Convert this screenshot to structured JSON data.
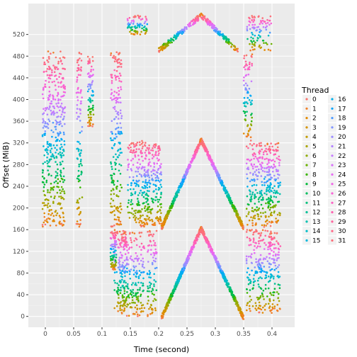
{
  "chart_data": {
    "type": "scatter",
    "xlabel": "Time (second)",
    "ylabel": "Offset (MiB)",
    "xlim": [
      -0.03,
      0.44
    ],
    "ylim": [
      -20,
      577
    ],
    "x_ticks": [
      0,
      0.05,
      0.1,
      0.15,
      0.2,
      0.25,
      0.3,
      0.35,
      0.4
    ],
    "x_tick_labels": [
      "0",
      "0.05",
      "0.1",
      "0.15",
      "0.2",
      "0.25",
      "0.3",
      "0.35",
      "0.4"
    ],
    "y_ticks": [
      0,
      40,
      80,
      120,
      160,
      200,
      240,
      280,
      320,
      360,
      400,
      440,
      480,
      520
    ],
    "y_tick_labels": [
      "0",
      "40",
      "80",
      "120",
      "160",
      "200",
      "240",
      "280",
      "320",
      "360",
      "400",
      "440",
      "480",
      "520"
    ],
    "grid": true,
    "legend": {
      "title": "Thread",
      "placement": "right",
      "labels": [
        "0",
        "1",
        "2",
        "3",
        "4",
        "5",
        "6",
        "7",
        "8",
        "9",
        "10",
        "11",
        "12",
        "13",
        "14",
        "15",
        "16",
        "17",
        "18",
        "19",
        "20",
        "21",
        "22",
        "23",
        "24",
        "25",
        "26",
        "27",
        "28",
        "29",
        "30",
        "31"
      ]
    },
    "series": [
      {
        "name": "0",
        "color": "#F8766D"
      },
      {
        "name": "1",
        "color": "#F07F28"
      },
      {
        "name": "2",
        "color": "#E38900"
      },
      {
        "name": "3",
        "color": "#D49200"
      },
      {
        "name": "4",
        "color": "#C09B00"
      },
      {
        "name": "5",
        "color": "#A9A400"
      },
      {
        "name": "6",
        "color": "#8EAB00"
      },
      {
        "name": "7",
        "color": "#6BB100"
      },
      {
        "name": "8",
        "color": "#39B600"
      },
      {
        "name": "9",
        "color": "#00BA38"
      },
      {
        "name": "10",
        "color": "#00BD5C"
      },
      {
        "name": "11",
        "color": "#00C07B"
      },
      {
        "name": "12",
        "color": "#00C097"
      },
      {
        "name": "13",
        "color": "#00C0B0"
      },
      {
        "name": "14",
        "color": "#00BCC7"
      },
      {
        "name": "15",
        "color": "#00B8DB"
      },
      {
        "name": "16",
        "color": "#00B0EC"
      },
      {
        "name": "17",
        "color": "#00A5FB"
      },
      {
        "name": "18",
        "color": "#4D9BFF"
      },
      {
        "name": "19",
        "color": "#8094FF"
      },
      {
        "name": "20",
        "color": "#9C8CFF"
      },
      {
        "name": "21",
        "color": "#B383FF"
      },
      {
        "name": "22",
        "color": "#C77CFF"
      },
      {
        "name": "23",
        "color": "#D872F9"
      },
      {
        "name": "24",
        "color": "#E76BF3"
      },
      {
        "name": "25",
        "color": "#F066E6"
      },
      {
        "name": "26",
        "color": "#F863D6"
      },
      {
        "name": "27",
        "color": "#FD61C4"
      },
      {
        "name": "28",
        "color": "#FF62B1"
      },
      {
        "name": "29",
        "color": "#FF649D"
      },
      {
        "name": "30",
        "color": "#FF6888"
      },
      {
        "name": "31",
        "color": "#FC6F7A"
      }
    ],
    "clusters": [
      {
        "t0": -0.005,
        "t1": 0.035,
        "y0": 165,
        "y1": 490,
        "mode": "band"
      },
      {
        "t0": 0.055,
        "t1": 0.065,
        "y0": 165,
        "y1": 490,
        "mode": "band"
      },
      {
        "t0": 0.115,
        "t1": 0.135,
        "y0": 165,
        "y1": 490,
        "mode": "band"
      },
      {
        "t0": 0.12,
        "t1": 0.145,
        "y0": 5,
        "y1": 160,
        "mode": "band"
      },
      {
        "t0": 0.145,
        "t1": 0.185,
        "y0": 165,
        "y1": 325,
        "mode": "band"
      },
      {
        "t0": 0.13,
        "t1": 0.175,
        "y0": 0,
        "y1": 155,
        "mode": "band"
      },
      {
        "t0": 0.175,
        "t1": 0.195,
        "y0": 165,
        "y1": 325,
        "mode": "band"
      },
      {
        "t0": 0.18,
        "t1": 0.197,
        "y0": 0,
        "y1": 160,
        "mode": "band"
      },
      {
        "t0": 0.195,
        "t1": 0.205,
        "y0": 170,
        "y1": 325,
        "mode": "band"
      },
      {
        "t0": 0.205,
        "t1": 0.275,
        "y0": 163,
        "y1": 325,
        "mode": "rampUp"
      },
      {
        "t0": 0.275,
        "t1": 0.35,
        "y0": 163,
        "y1": 325,
        "mode": "rampDown"
      },
      {
        "t0": 0.205,
        "t1": 0.275,
        "y0": -3,
        "y1": 162,
        "mode": "rampUp"
      },
      {
        "t0": 0.275,
        "t1": 0.35,
        "y0": -3,
        "y1": 162,
        "mode": "rampDown"
      },
      {
        "t0": 0.2,
        "t1": 0.275,
        "y0": 490,
        "y1": 555,
        "mode": "rampUp"
      },
      {
        "t0": 0.275,
        "t1": 0.34,
        "y0": 490,
        "y1": 555,
        "mode": "rampDown"
      },
      {
        "t0": 0.145,
        "t1": 0.18,
        "y0": 520,
        "y1": 555,
        "mode": "band"
      },
      {
        "t0": 0.355,
        "t1": 0.4,
        "y0": 490,
        "y1": 555,
        "mode": "band"
      },
      {
        "t0": 0.35,
        "t1": 0.365,
        "y0": 330,
        "y1": 485,
        "mode": "band"
      },
      {
        "t0": 0.355,
        "t1": 0.38,
        "y0": 165,
        "y1": 325,
        "mode": "band"
      },
      {
        "t0": 0.38,
        "t1": 0.4,
        "y0": 165,
        "y1": 325,
        "mode": "band"
      },
      {
        "t0": 0.355,
        "t1": 0.4,
        "y0": 5,
        "y1": 160,
        "mode": "band"
      },
      {
        "t0": 0.39,
        "t1": 0.415,
        "y0": 170,
        "y1": 320,
        "mode": "band"
      },
      {
        "t0": 0.395,
        "t1": 0.415,
        "y0": 10,
        "y1": 155,
        "mode": "band"
      },
      {
        "t0": 0.075,
        "t1": 0.085,
        "y0": 350,
        "y1": 480,
        "mode": "band"
      },
      {
        "t0": 0.115,
        "t1": 0.125,
        "y0": 85,
        "y1": 160,
        "mode": "band"
      }
    ]
  }
}
